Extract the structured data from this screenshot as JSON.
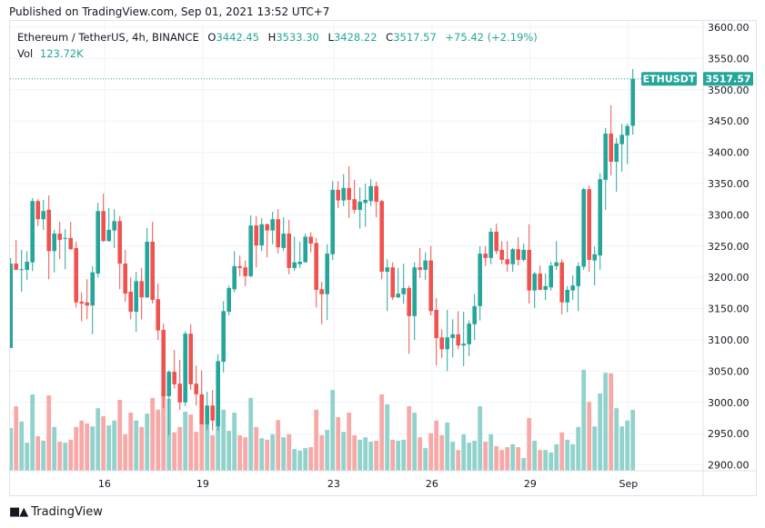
{
  "published": "Published on TradingView.com, Sep 01, 2021 13:52 UTC+7",
  "legend": {
    "symbol": "Ethereum / TetherUS, 4h, BINANCE",
    "o_label": "O",
    "o": "3442.45",
    "h_label": "H",
    "h": "3533.30",
    "l_label": "L",
    "l": "3428.22",
    "c_label": "C",
    "c": "3517.57",
    "change": "+75.42 (+2.19%)",
    "vol_label": "Vol",
    "vol": "123.72K"
  },
  "last_price": {
    "ticker": "ETHUSDT",
    "price": "3517.57",
    "value": 3517.57
  },
  "footer": {
    "brand": "TradingView",
    "logo": "TV"
  },
  "colors": {
    "up": "#26a69a",
    "down": "#ef5350",
    "up_vol": "#92d2cc",
    "down_vol": "#f7a9a7",
    "grid": "#f0f3fa"
  },
  "chart_data": {
    "type": "candlestick",
    "title": "Ethereum / TetherUS, 4h, BINANCE",
    "ylim": [
      2890,
      3610
    ],
    "y_ticks": [
      "3600.00",
      "3550.00",
      "3500.00",
      "3450.00",
      "3400.00",
      "3350.00",
      "3300.00",
      "3250.00",
      "3200.00",
      "3150.00",
      "3100.00",
      "3050.00",
      "3000.00",
      "2950.00",
      "2900.00"
    ],
    "y_tick_values": [
      3600,
      3550,
      3500,
      3450,
      3400,
      3350,
      3300,
      3250,
      3200,
      3150,
      3100,
      3050,
      3000,
      2950,
      2900
    ],
    "x_ticks": [
      {
        "label": "16",
        "index": 17.2
      },
      {
        "label": "19",
        "index": 35.2
      },
      {
        "label": "23",
        "index": 59.2
      },
      {
        "label": "26",
        "index": 77.2
      },
      {
        "label": "29",
        "index": 95.2
      },
      {
        "label": "Sep",
        "index": 113.2
      }
    ],
    "volume_unit": "K",
    "ohlcv": [
      [
        3087,
        3231,
        3087,
        3222,
        87
      ],
      [
        3222,
        3260,
        3212,
        3212,
        131
      ],
      [
        3213,
        3244,
        3177,
        3213,
        100
      ],
      [
        3212,
        3242,
        3196,
        3225,
        57
      ],
      [
        3224,
        3327,
        3210,
        3322,
        155
      ],
      [
        3322,
        3325,
        3282,
        3293,
        70
      ],
      [
        3293,
        3324,
        3276,
        3306,
        61
      ],
      [
        3308,
        3331,
        3197,
        3242,
        153
      ],
      [
        3242,
        3276,
        3208,
        3270,
        89
      ],
      [
        3270,
        3289,
        3229,
        3260,
        59
      ],
      [
        3262,
        3277,
        3213,
        3263,
        57
      ],
      [
        3263,
        3289,
        3244,
        3245,
        63
      ],
      [
        3247,
        3257,
        3152,
        3160,
        89
      ],
      [
        3161,
        3176,
        3130,
        3158,
        102
      ],
      [
        3160,
        3197,
        3133,
        3155,
        96
      ],
      [
        3155,
        3218,
        3109,
        3208,
        90
      ],
      [
        3206,
        3319,
        3200,
        3306,
        127
      ],
      [
        3306,
        3334,
        3257,
        3258,
        111
      ],
      [
        3258,
        3311,
        3257,
        3276,
        92
      ],
      [
        3275,
        3309,
        3247,
        3290,
        102
      ],
      [
        3290,
        3298,
        3181,
        3222,
        144
      ],
      [
        3222,
        3244,
        3161,
        3174,
        74
      ],
      [
        3177,
        3200,
        3133,
        3145,
        118
      ],
      [
        3145,
        3209,
        3113,
        3194,
        102
      ],
      [
        3194,
        3215,
        3133,
        3168,
        89
      ],
      [
        3168,
        3279,
        3167,
        3257,
        116
      ],
      [
        3257,
        3289,
        3158,
        3164,
        148
      ],
      [
        3165,
        3190,
        3100,
        3115,
        124
      ],
      [
        3116,
        3126,
        2991,
        3010,
        156
      ],
      [
        3010,
        3051,
        2947,
        3049,
        146
      ],
      [
        3049,
        3084,
        3022,
        3029,
        78
      ],
      [
        3030,
        3068,
        2988,
        3000,
        89
      ],
      [
        3000,
        3114,
        2994,
        3110,
        120
      ],
      [
        3110,
        3125,
        3020,
        3029,
        114
      ],
      [
        3030,
        3059,
        2995,
        3013,
        79
      ],
      [
        3013,
        3051,
        2965,
        2965,
        95
      ],
      [
        2965,
        3017,
        2956,
        2995,
        95
      ],
      [
        2995,
        3020,
        2955,
        2971,
        72
      ],
      [
        2962,
        3077,
        2955,
        3066,
        122
      ],
      [
        3065,
        3162,
        3048,
        3146,
        124
      ],
      [
        3145,
        3187,
        3139,
        3183,
        81
      ],
      [
        3181,
        3242,
        3176,
        3218,
        118
      ],
      [
        3218,
        3235,
        3202,
        3215,
        72
      ],
      [
        3216,
        3227,
        3186,
        3202,
        68
      ],
      [
        3202,
        3299,
        3200,
        3283,
        148
      ],
      [
        3283,
        3298,
        3216,
        3251,
        89
      ],
      [
        3251,
        3295,
        3242,
        3285,
        66
      ],
      [
        3285,
        3286,
        3232,
        3275,
        63
      ],
      [
        3275,
        3305,
        3253,
        3293,
        74
      ],
      [
        3293,
        3309,
        3238,
        3248,
        103
      ],
      [
        3247,
        3296,
        3242,
        3270,
        68
      ],
      [
        3270,
        3292,
        3205,
        3215,
        74
      ],
      [
        3215,
        3265,
        3210,
        3224,
        44
      ],
      [
        3221,
        3257,
        3215,
        3225,
        41
      ],
      [
        3224,
        3270,
        3224,
        3265,
        46
      ],
      [
        3265,
        3272,
        3240,
        3254,
        48
      ],
      [
        3255,
        3263,
        3152,
        3180,
        124
      ],
      [
        3181,
        3193,
        3125,
        3173,
        72
      ],
      [
        3173,
        3253,
        3132,
        3238,
        83
      ],
      [
        3237,
        3354,
        3228,
        3340,
        164
      ],
      [
        3340,
        3354,
        3311,
        3323,
        109
      ],
      [
        3323,
        3365,
        3314,
        3343,
        79
      ],
      [
        3343,
        3378,
        3295,
        3324,
        118
      ],
      [
        3325,
        3356,
        3302,
        3308,
        72
      ],
      [
        3308,
        3344,
        3278,
        3321,
        63
      ],
      [
        3319,
        3350,
        3281,
        3324,
        68
      ],
      [
        3322,
        3357,
        3314,
        3346,
        59
      ],
      [
        3346,
        3353,
        3296,
        3321,
        61
      ],
      [
        3322,
        3324,
        3197,
        3209,
        155
      ],
      [
        3209,
        3229,
        3146,
        3216,
        135
      ],
      [
        3216,
        3224,
        3164,
        3168,
        63
      ],
      [
        3168,
        3215,
        3167,
        3174,
        61
      ],
      [
        3173,
        3222,
        3158,
        3183,
        63
      ],
      [
        3183,
        3187,
        3078,
        3138,
        131
      ],
      [
        3138,
        3224,
        3100,
        3216,
        118
      ],
      [
        3216,
        3247,
        3199,
        3212,
        68
      ],
      [
        3212,
        3240,
        3196,
        3227,
        46
      ],
      [
        3227,
        3250,
        3139,
        3146,
        76
      ],
      [
        3148,
        3167,
        3059,
        3103,
        102
      ],
      [
        3104,
        3117,
        3071,
        3085,
        72
      ],
      [
        3085,
        3148,
        3050,
        3104,
        98
      ],
      [
        3103,
        3133,
        3072,
        3109,
        59
      ],
      [
        3109,
        3146,
        3085,
        3091,
        42
      ],
      [
        3091,
        3145,
        3058,
        3094,
        74
      ],
      [
        3093,
        3131,
        3074,
        3126,
        57
      ],
      [
        3125,
        3173,
        3100,
        3154,
        61
      ],
      [
        3154,
        3250,
        3131,
        3238,
        131
      ],
      [
        3238,
        3250,
        3218,
        3231,
        59
      ],
      [
        3231,
        3279,
        3221,
        3273,
        74
      ],
      [
        3273,
        3286,
        3237,
        3242,
        50
      ],
      [
        3244,
        3258,
        3221,
        3228,
        42
      ],
      [
        3229,
        3258,
        3209,
        3221,
        48
      ],
      [
        3221,
        3247,
        3209,
        3245,
        54
      ],
      [
        3245,
        3264,
        3219,
        3228,
        48
      ],
      [
        3228,
        3254,
        3225,
        3244,
        26
      ],
      [
        3244,
        3285,
        3158,
        3179,
        107
      ],
      [
        3179,
        3209,
        3151,
        3206,
        61
      ],
      [
        3206,
        3219,
        3180,
        3180,
        42
      ],
      [
        3180,
        3206,
        3164,
        3186,
        42
      ],
      [
        3184,
        3225,
        3179,
        3219,
        37
      ],
      [
        3218,
        3258,
        3212,
        3224,
        54
      ],
      [
        3224,
        3229,
        3141,
        3160,
        78
      ],
      [
        3160,
        3186,
        3144,
        3180,
        63
      ],
      [
        3179,
        3203,
        3164,
        3187,
        54
      ],
      [
        3186,
        3224,
        3146,
        3218,
        89
      ],
      [
        3217,
        3343,
        3212,
        3341,
        205
      ],
      [
        3341,
        3347,
        3209,
        3228,
        140
      ],
      [
        3227,
        3250,
        3187,
        3237,
        90
      ],
      [
        3235,
        3367,
        3212,
        3357,
        157
      ],
      [
        3356,
        3439,
        3308,
        3430,
        199
      ],
      [
        3430,
        3475,
        3363,
        3385,
        198
      ],
      [
        3385,
        3423,
        3337,
        3414,
        127
      ],
      [
        3413,
        3445,
        3369,
        3428,
        90
      ],
      [
        3427,
        3446,
        3381,
        3442,
        102
      ],
      [
        3442.45,
        3533.3,
        3428.22,
        3517.57,
        123.72
      ]
    ]
  }
}
